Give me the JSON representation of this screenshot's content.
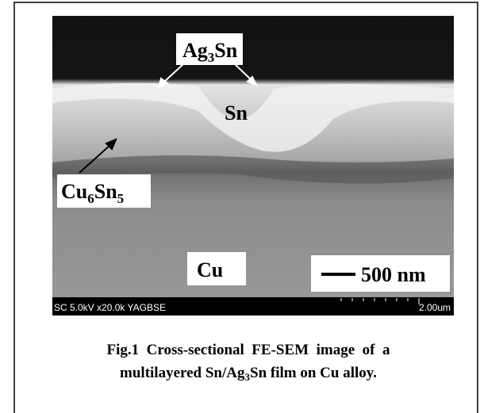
{
  "figure": {
    "image_labels": {
      "ag3sn": [
        "Ag",
        "3",
        "Sn"
      ],
      "sn": "Sn",
      "cu6sn5": [
        "Cu",
        "6",
        "Sn",
        "5"
      ],
      "cu": "Cu",
      "scale_bar": "500 nm"
    },
    "info_bar": {
      "left": "SC 5.0kV x20.0k YAGBSE",
      "right": "2.00um"
    },
    "caption": {
      "line1": "Fig.1  Cross-sectional  FE-SEM  image  of  a",
      "line2": [
        "multilayered Sn/Ag",
        "3",
        "Sn film on Cu alloy."
      ]
    }
  }
}
